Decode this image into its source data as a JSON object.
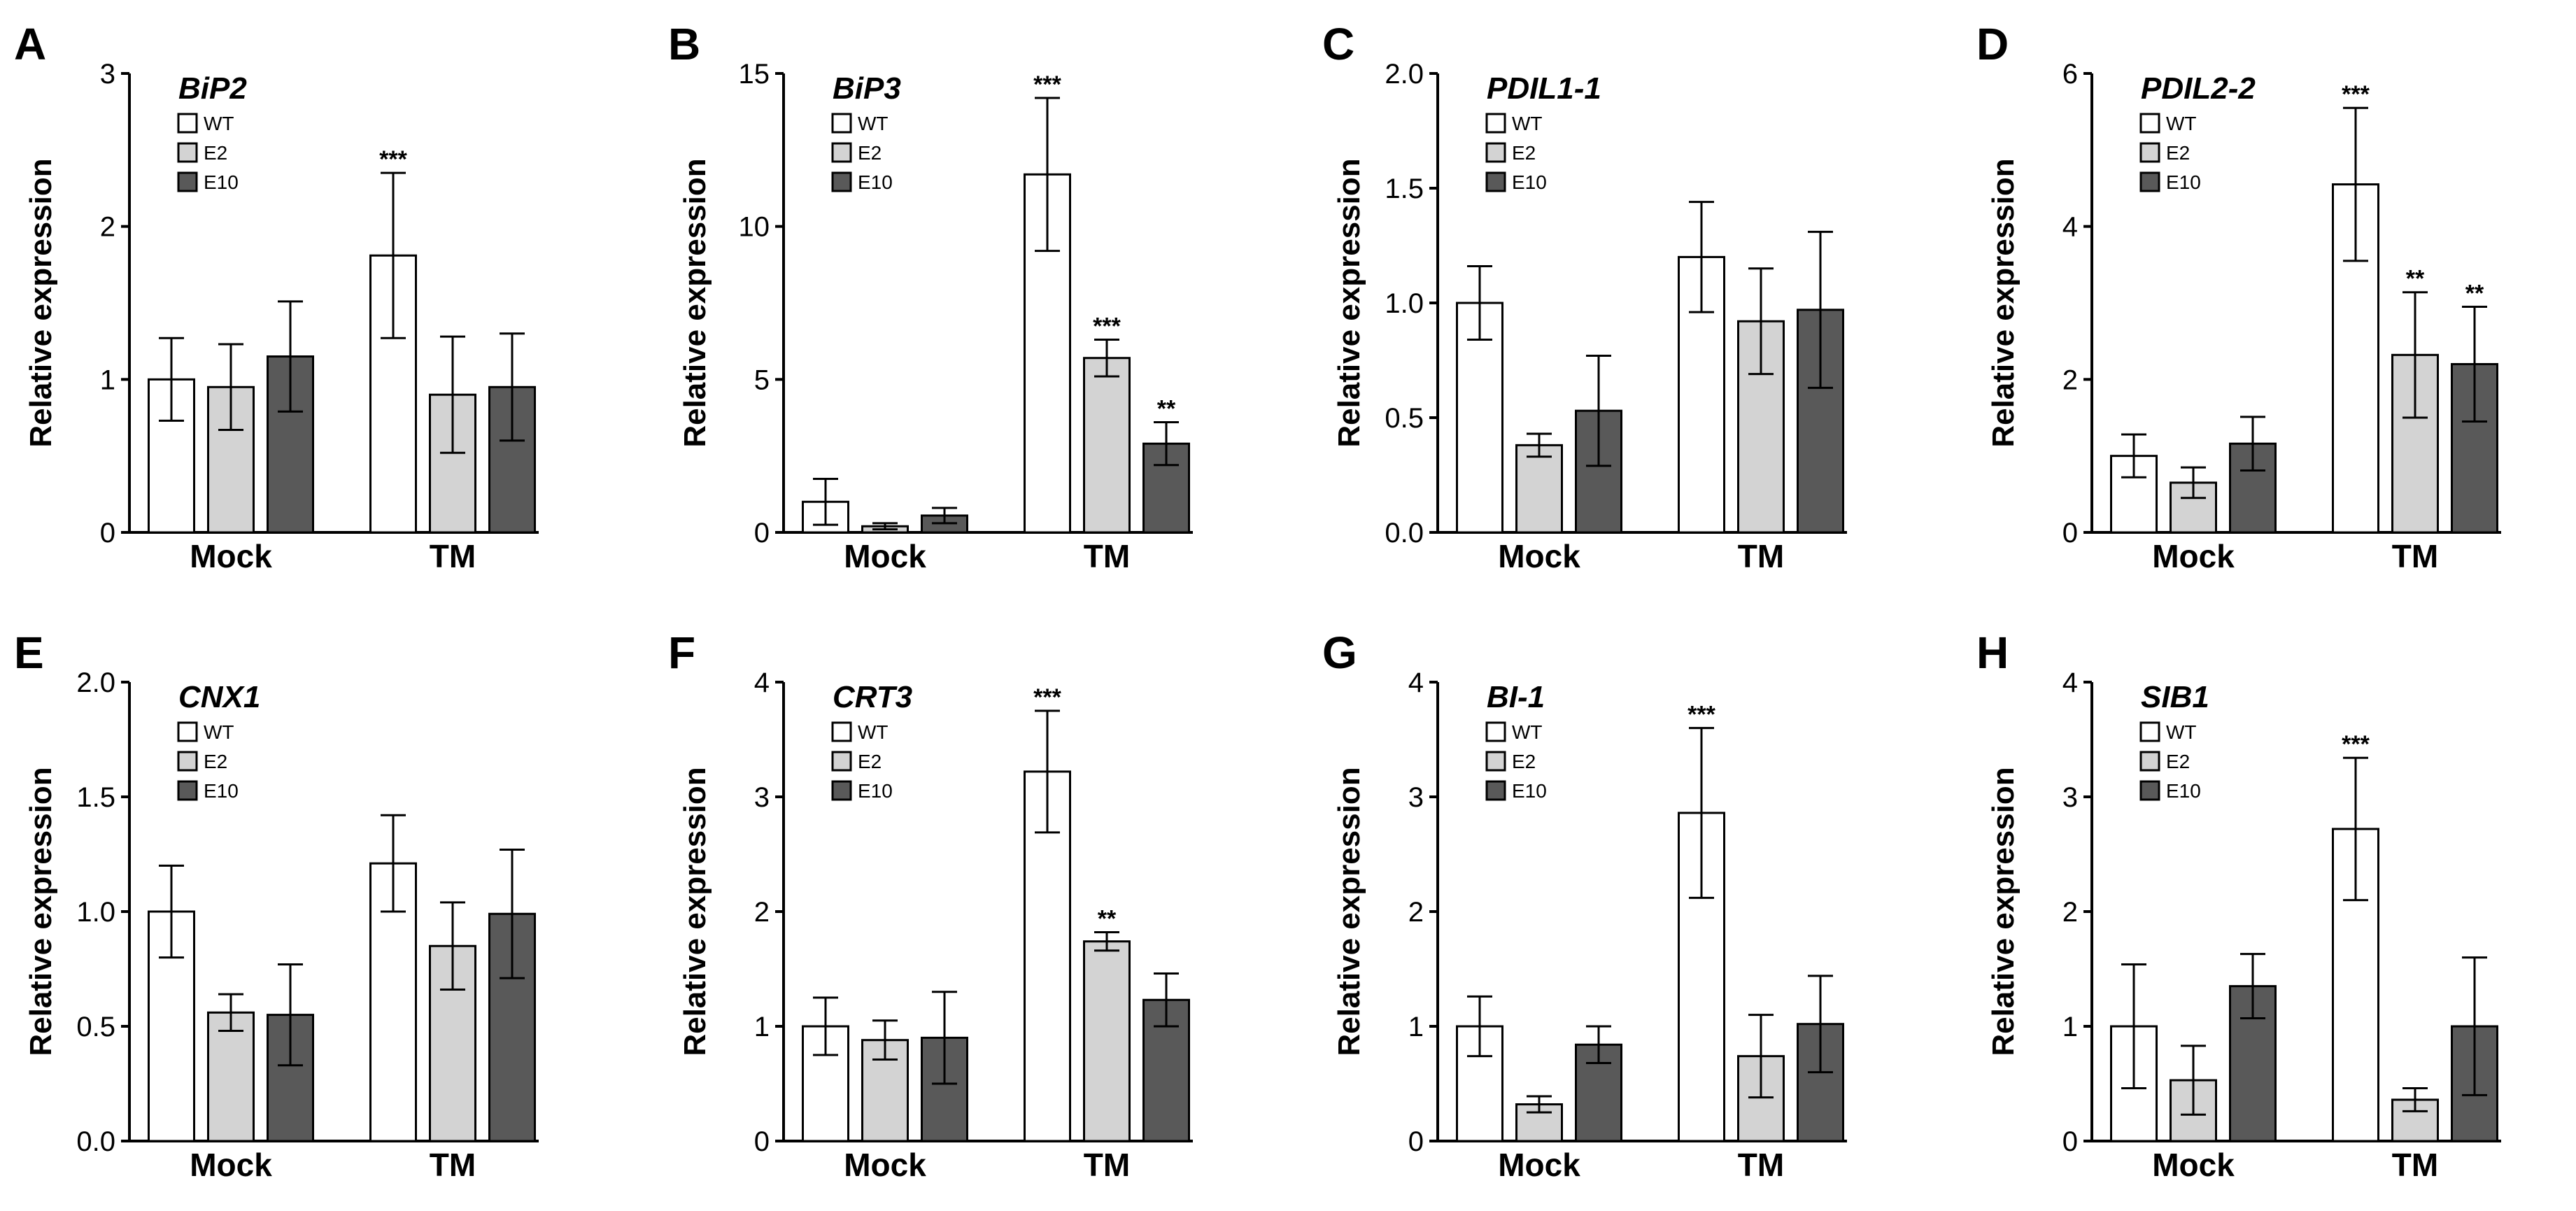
{
  "figure": {
    "ylabel": "Relative expression",
    "groups": [
      "Mock",
      "TM"
    ],
    "legend": [
      {
        "name": "WT",
        "color": "#ffffff"
      },
      {
        "name": "E2",
        "color": "#d3d3d3"
      },
      {
        "name": "E10",
        "color": "#595959"
      }
    ]
  },
  "chart_data": [
    {
      "panel": "A",
      "type": "bar",
      "title": "BiP2",
      "ylabel": "Relative expression",
      "categories": [
        "Mock",
        "TM"
      ],
      "ylim": [
        0,
        3
      ],
      "ticks": [
        "0",
        "1",
        "2",
        "3"
      ],
      "series": [
        {
          "name": "WT",
          "values": [
            1.0,
            1.81
          ],
          "errors": [
            0.27,
            0.54
          ],
          "sig": [
            "",
            "***"
          ]
        },
        {
          "name": "E2",
          "values": [
            0.95,
            0.9
          ],
          "errors": [
            0.28,
            0.38
          ],
          "sig": [
            "",
            ""
          ]
        },
        {
          "name": "E10",
          "values": [
            1.15,
            0.95
          ],
          "errors": [
            0.36,
            0.35
          ],
          "sig": [
            "",
            ""
          ]
        }
      ]
    },
    {
      "panel": "B",
      "type": "bar",
      "title": "BiP3",
      "ylabel": "Relative expression",
      "categories": [
        "Mock",
        "TM"
      ],
      "ylim": [
        0,
        15
      ],
      "ticks": [
        "0",
        "5",
        "10",
        "15"
      ],
      "series": [
        {
          "name": "WT",
          "values": [
            1.0,
            11.7
          ],
          "errors": [
            0.75,
            2.5
          ],
          "sig": [
            "",
            "***"
          ]
        },
        {
          "name": "E2",
          "values": [
            0.2,
            5.7
          ],
          "errors": [
            0.1,
            0.6
          ],
          "sig": [
            "",
            "***"
          ]
        },
        {
          "name": "E10",
          "values": [
            0.55,
            2.9
          ],
          "errors": [
            0.25,
            0.7
          ],
          "sig": [
            "",
            "**"
          ]
        }
      ]
    },
    {
      "panel": "C",
      "type": "bar",
      "title": "PDIL1-1",
      "ylabel": "Relative expression",
      "categories": [
        "Mock",
        "TM"
      ],
      "ylim": [
        0,
        2
      ],
      "ticks": [
        "0.0",
        "0.5",
        "1.0",
        "1.5",
        "2.0"
      ],
      "series": [
        {
          "name": "WT",
          "values": [
            1.0,
            1.2
          ],
          "errors": [
            0.16,
            0.24
          ],
          "sig": [
            "",
            ""
          ]
        },
        {
          "name": "E2",
          "values": [
            0.38,
            0.92
          ],
          "errors": [
            0.05,
            0.23
          ],
          "sig": [
            "",
            ""
          ]
        },
        {
          "name": "E10",
          "values": [
            0.53,
            0.97
          ],
          "errors": [
            0.24,
            0.34
          ],
          "sig": [
            "",
            ""
          ]
        }
      ]
    },
    {
      "panel": "D",
      "type": "bar",
      "title": "PDIL2-2",
      "ylabel": "Relative expression",
      "categories": [
        "Mock",
        "TM"
      ],
      "ylim": [
        0,
        6
      ],
      "ticks": [
        "0",
        "2",
        "4",
        "6"
      ],
      "series": [
        {
          "name": "WT",
          "values": [
            1.0,
            4.55
          ],
          "errors": [
            0.28,
            1.0
          ],
          "sig": [
            "",
            "***"
          ]
        },
        {
          "name": "E2",
          "values": [
            0.65,
            2.32
          ],
          "errors": [
            0.2,
            0.82
          ],
          "sig": [
            "",
            "**"
          ]
        },
        {
          "name": "E10",
          "values": [
            1.16,
            2.2
          ],
          "errors": [
            0.35,
            0.75
          ],
          "sig": [
            "",
            "**"
          ]
        }
      ]
    },
    {
      "panel": "E",
      "type": "bar",
      "title": "CNX1",
      "ylabel": "Relative expression",
      "categories": [
        "Mock",
        "TM"
      ],
      "ylim": [
        0,
        2
      ],
      "ticks": [
        "0.0",
        "0.5",
        "1.0",
        "1.5",
        "2.0"
      ],
      "series": [
        {
          "name": "WT",
          "values": [
            1.0,
            1.21
          ],
          "errors": [
            0.2,
            0.21
          ],
          "sig": [
            "",
            ""
          ]
        },
        {
          "name": "E2",
          "values": [
            0.56,
            0.85
          ],
          "errors": [
            0.08,
            0.19
          ],
          "sig": [
            "",
            ""
          ]
        },
        {
          "name": "E10",
          "values": [
            0.55,
            0.99
          ],
          "errors": [
            0.22,
            0.28
          ],
          "sig": [
            "",
            ""
          ]
        }
      ]
    },
    {
      "panel": "F",
      "type": "bar",
      "title": "CRT3",
      "ylabel": "Relative expression",
      "categories": [
        "Mock",
        "TM"
      ],
      "ylim": [
        0,
        4
      ],
      "ticks": [
        "0",
        "1",
        "2",
        "3",
        "4"
      ],
      "series": [
        {
          "name": "WT",
          "values": [
            1.0,
            3.22
          ],
          "errors": [
            0.25,
            0.53
          ],
          "sig": [
            "",
            "***"
          ]
        },
        {
          "name": "E2",
          "values": [
            0.88,
            1.74
          ],
          "errors": [
            0.17,
            0.08
          ],
          "sig": [
            "",
            "**"
          ]
        },
        {
          "name": "E10",
          "values": [
            0.9,
            1.23
          ],
          "errors": [
            0.4,
            0.23
          ],
          "sig": [
            "",
            ""
          ]
        }
      ]
    },
    {
      "panel": "G",
      "type": "bar",
      "title": "BI-1",
      "ylabel": "Relative expression",
      "categories": [
        "Mock",
        "TM"
      ],
      "ylim": [
        0,
        4
      ],
      "ticks": [
        "0",
        "1",
        "2",
        "3",
        "4"
      ],
      "series": [
        {
          "name": "WT",
          "values": [
            1.0,
            2.86
          ],
          "errors": [
            0.26,
            0.74
          ],
          "sig": [
            "",
            "***"
          ]
        },
        {
          "name": "E2",
          "values": [
            0.32,
            0.74
          ],
          "errors": [
            0.07,
            0.36
          ],
          "sig": [
            "",
            ""
          ]
        },
        {
          "name": "E10",
          "values": [
            0.84,
            1.02
          ],
          "errors": [
            0.16,
            0.42
          ],
          "sig": [
            "",
            ""
          ]
        }
      ]
    },
    {
      "panel": "H",
      "type": "bar",
      "title": "SIB1",
      "ylabel": "Relative expression",
      "categories": [
        "Mock",
        "TM"
      ],
      "ylim": [
        0,
        4
      ],
      "ticks": [
        "0",
        "1",
        "2",
        "3",
        "4"
      ],
      "series": [
        {
          "name": "WT",
          "values": [
            1.0,
            2.72
          ],
          "errors": [
            0.54,
            0.62
          ],
          "sig": [
            "",
            "***"
          ]
        },
        {
          "name": "E2",
          "values": [
            0.53,
            0.36
          ],
          "errors": [
            0.3,
            0.1
          ],
          "sig": [
            "",
            ""
          ]
        },
        {
          "name": "E10",
          "values": [
            1.35,
            1.0
          ],
          "errors": [
            0.28,
            0.6
          ],
          "sig": [
            "",
            ""
          ]
        }
      ]
    }
  ]
}
